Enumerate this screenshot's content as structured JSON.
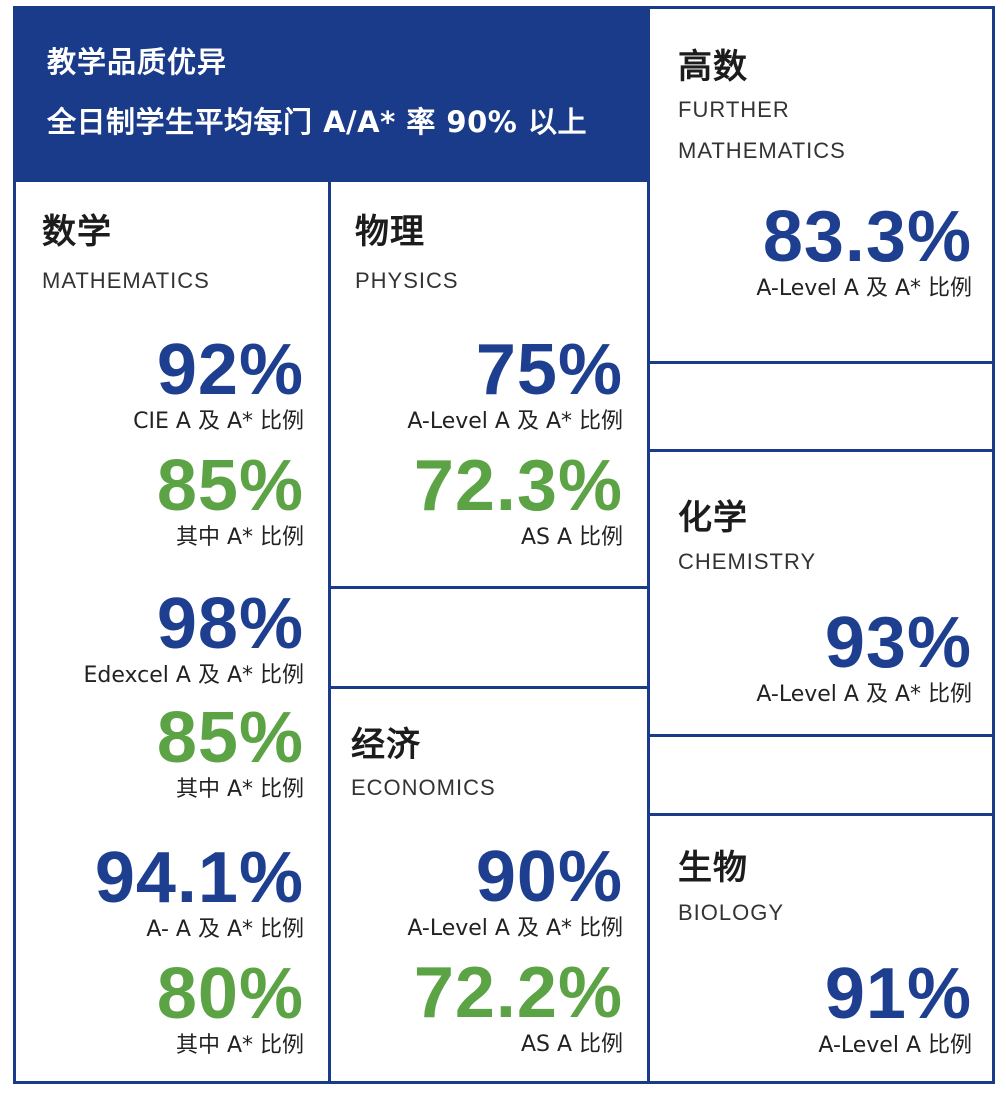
{
  "header": {
    "line1": "教学品质优异",
    "line2": "全日制学生平均每门 A/A* 率 90% 以上"
  },
  "colors": {
    "navy": "#1a3a8a",
    "stat_blue": "#1e3f8f",
    "stat_green": "#5ca346"
  },
  "math": {
    "cn": "数学",
    "en": "MATHEMATICS",
    "stats": [
      {
        "value": "92%",
        "label": "CIE A 及 A* 比例",
        "color": "blue"
      },
      {
        "value": "85%",
        "label": "其中 A* 比例",
        "color": "green"
      },
      {
        "value": "98%",
        "label": "Edexcel A 及 A* 比例",
        "color": "blue"
      },
      {
        "value": "85%",
        "label": "其中 A* 比例",
        "color": "green"
      },
      {
        "value": "94.1%",
        "label": "A- A 及 A* 比例",
        "color": "blue"
      },
      {
        "value": "80%",
        "label": "其中 A* 比例",
        "color": "green"
      }
    ]
  },
  "physics": {
    "cn": "物理",
    "en": "PHYSICS",
    "stats": [
      {
        "value": "75%",
        "label": "A-Level A 及 A* 比例",
        "color": "blue"
      },
      {
        "value": "72.3%",
        "label": "AS A 比例",
        "color": "green"
      }
    ]
  },
  "economics": {
    "cn": "经济",
    "en": "ECONOMICS",
    "stats": [
      {
        "value": "90%",
        "label": "A-Level A 及 A* 比例",
        "color": "blue"
      },
      {
        "value": "72.2%",
        "label": "AS A 比例",
        "color": "green"
      }
    ]
  },
  "further_math": {
    "cn": "高数",
    "en_line1": "FURTHER",
    "en_line2": "MATHEMATICS",
    "stat": {
      "value": "83.3%",
      "label": "A-Level A 及 A* 比例"
    }
  },
  "chemistry": {
    "cn": "化学",
    "en": "CHEMISTRY",
    "stat": {
      "value": "93%",
      "label": "A-Level A 及 A* 比例"
    }
  },
  "biology": {
    "cn": "生物",
    "en": "BIOLOGY",
    "stat": {
      "value": "91%",
      "label": "A-Level A 比例"
    }
  }
}
